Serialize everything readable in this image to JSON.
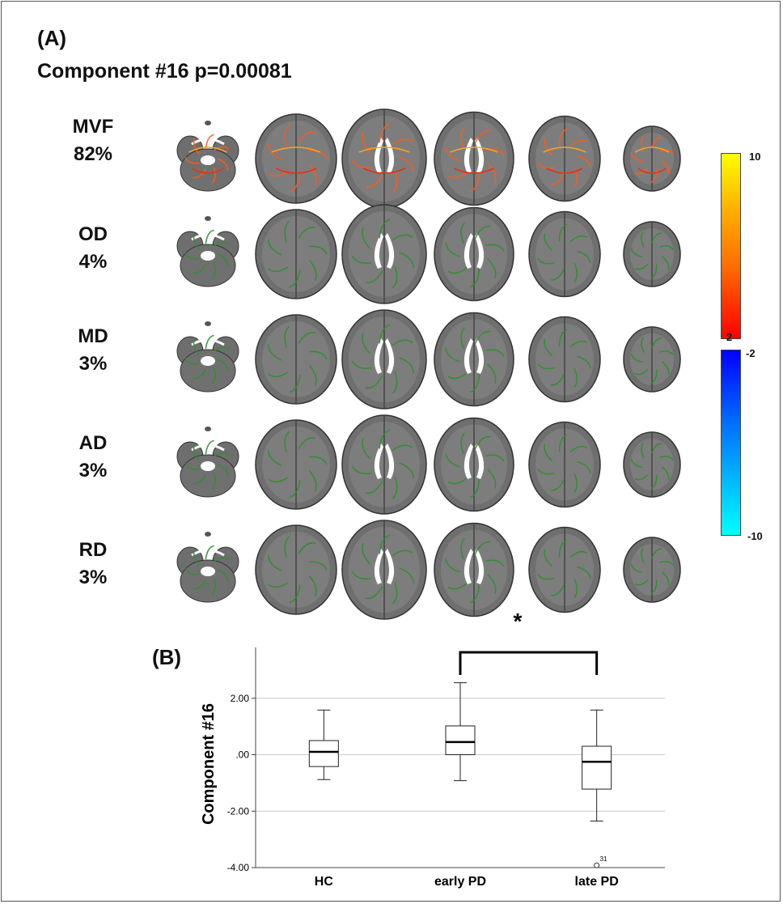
{
  "panel_a": {
    "label": "(A)",
    "title": "Component #16 p=0.00081",
    "rows": [
      {
        "name": "MVF",
        "percent": "82%",
        "overlay": "orange"
      },
      {
        "name": "OD",
        "percent": "4%",
        "overlay": "green"
      },
      {
        "name": "MD",
        "percent": "3%",
        "overlay": "green"
      },
      {
        "name": "AD",
        "percent": "3%",
        "overlay": "green"
      },
      {
        "name": "RD",
        "percent": "3%",
        "overlay": "green"
      }
    ],
    "colorbar": {
      "positive_max": "10",
      "positive_min": "2",
      "negative_max": "-2",
      "negative_min": "-10",
      "positive_colors": [
        "#ffff00",
        "#ff8c00",
        "#ff0000"
      ],
      "negative_colors": [
        "#0000ff",
        "#00ffff"
      ]
    }
  },
  "panel_b": {
    "label": "(B)",
    "significance": "*"
  },
  "chart_data": {
    "type": "box",
    "categories": [
      "HC",
      "early PD",
      "late PD"
    ],
    "ylabel": "Component #16",
    "ylim": [
      -4.0,
      3.8
    ],
    "yticks": [
      2.0,
      0.0,
      -2.0,
      -4.0
    ],
    "ytick_labels": [
      "2.00",
      ".00",
      "-2.00",
      "-4.00"
    ],
    "grid": true,
    "boxes": [
      {
        "category": "HC",
        "min": -0.88,
        "q1": -0.42,
        "median": 0.1,
        "q3": 0.5,
        "max": 1.58
      },
      {
        "category": "early PD",
        "min": -0.92,
        "q1": 0.0,
        "median": 0.45,
        "q3": 1.02,
        "max": 2.55
      },
      {
        "category": "late PD",
        "min": -2.35,
        "q1": -1.22,
        "median": -0.25,
        "q3": 0.3,
        "max": 1.58
      }
    ],
    "outliers": [
      {
        "category": "late PD",
        "value": -3.92,
        "label": "31"
      }
    ],
    "significance": {
      "between": [
        "early PD",
        "late PD"
      ],
      "label": "*"
    }
  }
}
